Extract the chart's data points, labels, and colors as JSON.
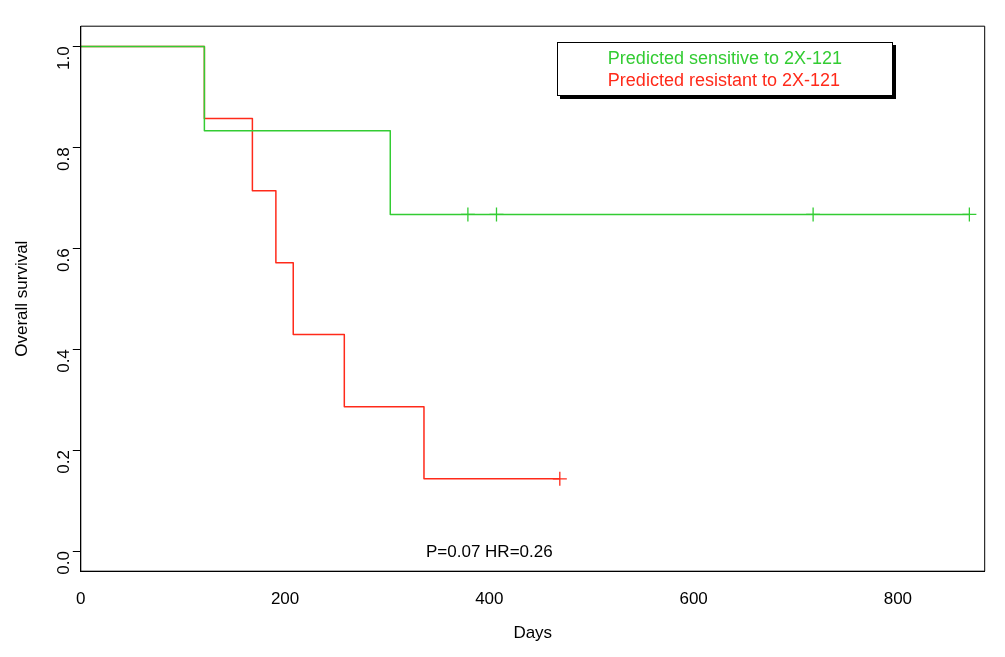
{
  "chart_data": {
    "type": "step",
    "xlabel": "Days",
    "ylabel": "Overall survival",
    "xlim": [
      0,
      885
    ],
    "ylim": [
      -0.04,
      1.04
    ],
    "xticks": [
      0,
      200,
      400,
      600,
      800
    ],
    "yticks": [
      {
        "value": 0,
        "label": "0.0"
      },
      {
        "value": 0.2,
        "label": "0.2"
      },
      {
        "value": 0.4,
        "label": "0.4"
      },
      {
        "value": 0.6,
        "label": "0.6"
      },
      {
        "value": 0.8,
        "label": "0.8"
      },
      {
        "value": 1,
        "label": "1.0"
      }
    ],
    "grid": false,
    "legend": "top right",
    "line_style": "solid",
    "series": [
      {
        "name": "Predicted sensitive to 2X-121",
        "color": "#33cc33",
        "x": [
          0,
          121,
          303,
          870
        ],
        "values": [
          1,
          0.833,
          0.667,
          0.667
        ]
      },
      {
        "name": "Predicted resistant to 2X-121",
        "color": "#ff2a1a",
        "x": [
          0,
          121,
          168,
          191,
          208,
          258,
          336,
          469
        ],
        "values": [
          1,
          0.857,
          0.714,
          0.571,
          0.429,
          0.286,
          0.143,
          0.143
        ]
      },
      {
        "type": "scatter",
        "marker": "cross",
        "color": "#33cc33",
        "x": [
          379,
          407,
          717,
          870
        ],
        "values": [
          0.667,
          0.667,
          0.667,
          0.667
        ]
      },
      {
        "type": "scatter",
        "marker": "cross",
        "color": "#ff2a1a",
        "x": [
          469
        ],
        "values": [
          0.143
        ]
      }
    ],
    "annotations": [
      "P=0.07 HR=0.26"
    ]
  }
}
